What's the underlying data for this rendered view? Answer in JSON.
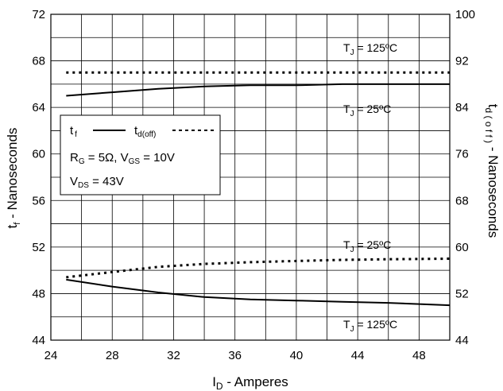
{
  "chart_data": {
    "type": "line",
    "xlabel_main": "I",
    "xlabel_sub": "D",
    "xlabel_rest": " - Amperes",
    "xlim": [
      24,
      50
    ],
    "x_ticks": [
      "24",
      "28",
      "32",
      "36",
      "40",
      "44",
      "48"
    ],
    "ylabel_left_main": "t",
    "ylabel_left_sub": "f",
    "ylabel_left_rest": " - Nanoseconds",
    "ylim_left": [
      44,
      72
    ],
    "y_ticks_left": [
      "44",
      "48",
      "52",
      "56",
      "60",
      "64",
      "68",
      "72"
    ],
    "ylabel_right_main": "t",
    "ylabel_right_sub": "d ( o f f )",
    "ylabel_right_rest": " - Nanoseconds",
    "ylim_right": [
      44,
      100
    ],
    "y_ticks_right": [
      "44",
      "52",
      "60",
      "68",
      "76",
      "84",
      "92",
      "100"
    ],
    "grid": true,
    "series": [
      {
        "axis": "left",
        "style": "solid",
        "x": [
          25,
          28,
          31,
          34,
          37,
          40,
          43,
          46,
          50
        ],
        "y": [
          65.0,
          65.3,
          65.6,
          65.8,
          65.9,
          65.9,
          66.0,
          66.0,
          66.0
        ]
      },
      {
        "axis": "right",
        "style": "dotted",
        "x": [
          25,
          30,
          35,
          40,
          45,
          50
        ],
        "y": [
          90.0,
          90.0,
          90.0,
          90.0,
          90.0,
          90.0
        ]
      },
      {
        "axis": "left",
        "style": "solid",
        "x": [
          25,
          28,
          31,
          34,
          37,
          40,
          43,
          46,
          50
        ],
        "y": [
          49.2,
          48.6,
          48.1,
          47.7,
          47.5,
          47.4,
          47.3,
          47.2,
          47.0
        ]
      },
      {
        "axis": "right",
        "style": "dotted",
        "x": [
          25,
          28,
          31,
          34,
          37,
          40,
          43,
          46,
          50
        ],
        "y": [
          54.8,
          55.7,
          56.6,
          57.1,
          57.4,
          57.6,
          57.8,
          57.9,
          58.0
        ]
      }
    ],
    "annotations": {
      "a1": {
        "pre": "T",
        "sub": "J",
        "post": " = 125ºC"
      },
      "a2": {
        "pre": "T",
        "sub": "J",
        "post": " = 25ºC"
      },
      "a3": {
        "pre": "T",
        "sub": "J",
        "post": " = 25ºC"
      },
      "a4": {
        "pre": "T",
        "sub": "J",
        "post": " = 125ºC"
      }
    },
    "legend": {
      "tf_main": "t",
      "tf_sub": "f",
      "td_main": "t",
      "td_sub": "d(off)",
      "rg_pre": "R",
      "rg_sub": "G",
      "rg_mid": " = 5Ω,  V",
      "vgs_sub": "GS",
      "vgs_post": " = 10V",
      "vds_pre": "V",
      "vds_sub": "DS",
      "vds_post": " = 43V"
    }
  }
}
